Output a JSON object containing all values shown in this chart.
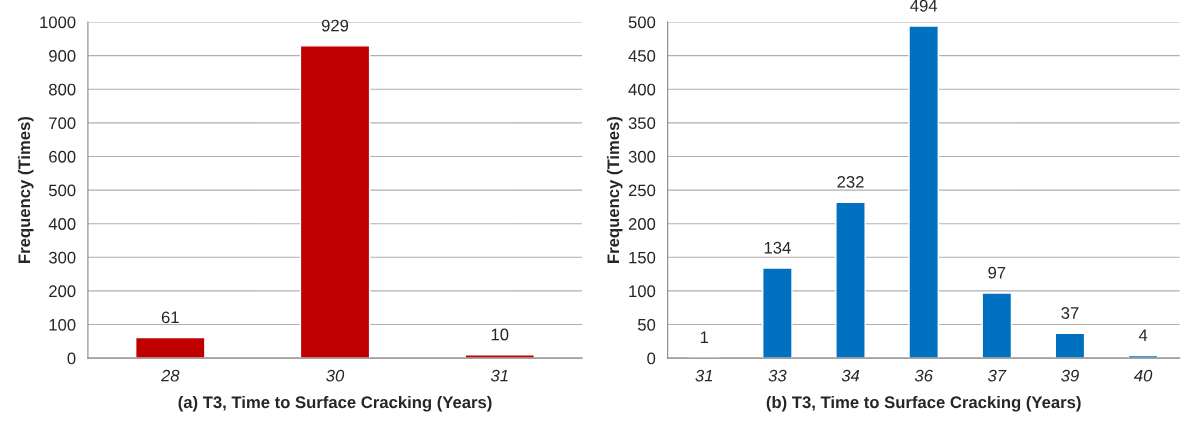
{
  "chart_data": [
    {
      "type": "bar",
      "categories": [
        "28",
        "30",
        "31"
      ],
      "values": [
        61,
        929,
        10
      ],
      "color": "#c00000",
      "xlabel": "(a) T3, Time to Surface Cracking (Years)",
      "ylabel": "Frequency (Times)",
      "ylim": [
        0,
        1000
      ],
      "yticks": [
        0,
        100,
        200,
        300,
        400,
        500,
        600,
        700,
        800,
        900,
        1000
      ],
      "grid": "y",
      "data_labels": true,
      "legend": false
    },
    {
      "type": "bar",
      "categories": [
        "31",
        "33",
        "34",
        "36",
        "37",
        "39",
        "40"
      ],
      "values": [
        1,
        134,
        232,
        494,
        97,
        37,
        4
      ],
      "color": "#0070c0",
      "xlabel": "(b) T3, Time to Surface Cracking (Years)",
      "ylabel": "Frequency (Times)",
      "ylim": [
        0,
        500
      ],
      "yticks": [
        0,
        50,
        100,
        150,
        200,
        250,
        300,
        350,
        400,
        450,
        500
      ],
      "grid": "y",
      "data_labels": true,
      "legend": false
    }
  ]
}
